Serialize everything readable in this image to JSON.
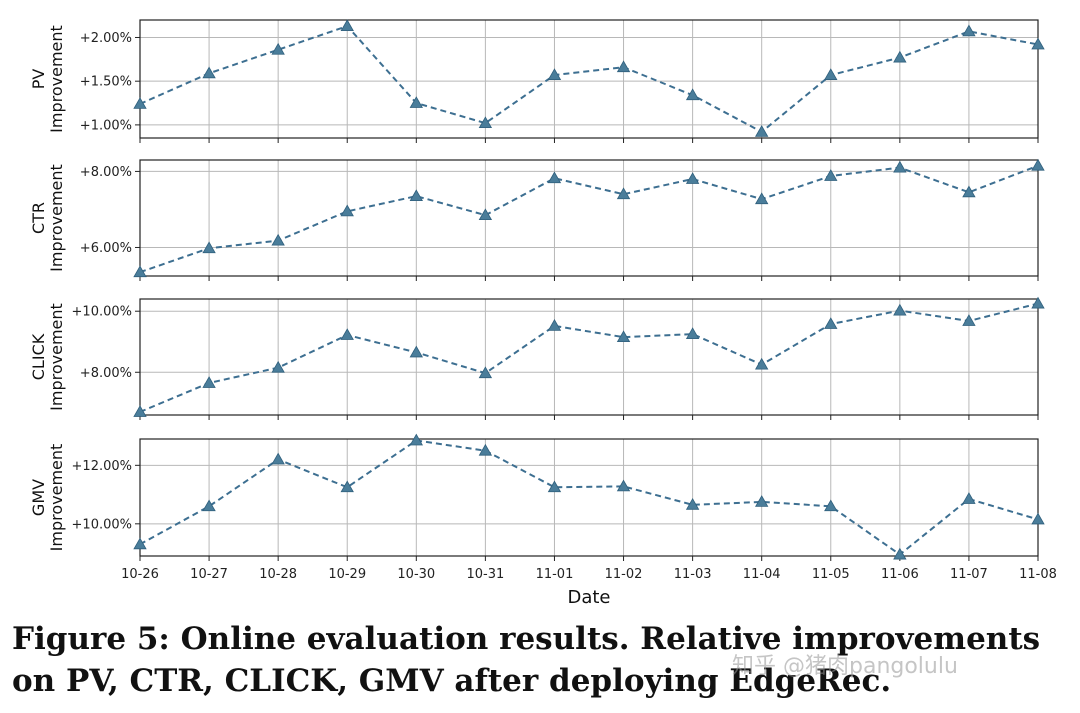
{
  "chart_data": {
    "type": "line",
    "layout": "stacked-subplots",
    "x": [
      "10-26",
      "10-27",
      "10-28",
      "10-29",
      "10-30",
      "10-31",
      "11-01",
      "11-02",
      "11-03",
      "11-04",
      "11-05",
      "11-06",
      "11-07",
      "11-08"
    ],
    "xlabel": "Date",
    "grid": true,
    "marker": "triangle",
    "line_style": "dashed",
    "line_color": "#3d6f91",
    "marker_color": "#4a7d9a",
    "subplots": [
      {
        "ylabel_top": "PV",
        "ylabel_bottom": "Improvement",
        "ylim": [
          0.85,
          2.2
        ],
        "yticks": [
          1.0,
          1.5,
          2.0
        ],
        "ytick_labels": [
          "+1.00%",
          "+1.50%",
          "+2.00%"
        ],
        "values": [
          1.24,
          1.59,
          1.86,
          2.13,
          1.25,
          1.02,
          1.57,
          1.66,
          1.34,
          0.92,
          1.57,
          1.77,
          2.07,
          1.92
        ]
      },
      {
        "ylabel_top": "CTR",
        "ylabel_bottom": "Improvement",
        "ylim": [
          5.25,
          8.3
        ],
        "yticks": [
          6.0,
          8.0
        ],
        "ytick_labels": [
          "+6.00%",
          "+8.00%"
        ],
        "values": [
          5.35,
          5.98,
          6.18,
          6.95,
          7.35,
          6.85,
          7.82,
          7.4,
          7.8,
          7.27,
          7.88,
          8.1,
          7.45,
          8.15
        ]
      },
      {
        "ylabel_top": "CLICK",
        "ylabel_bottom": "Improvement",
        "ylim": [
          6.6,
          10.4
        ],
        "yticks": [
          8.0,
          10.0
        ],
        "ytick_labels": [
          "+8.00%",
          "+10.00%"
        ],
        "values": [
          6.7,
          7.65,
          8.15,
          9.22,
          8.65,
          7.97,
          9.52,
          9.15,
          9.25,
          8.25,
          9.58,
          10.02,
          9.68,
          10.25
        ]
      },
      {
        "ylabel_top": "GMV",
        "ylabel_bottom": "Improvement",
        "ylim": [
          8.9,
          12.9
        ],
        "yticks": [
          10.0,
          12.0
        ],
        "ytick_labels": [
          "+10.00%",
          "+12.00%"
        ],
        "values": [
          9.3,
          10.6,
          12.2,
          11.25,
          12.85,
          12.5,
          11.25,
          11.28,
          10.65,
          10.75,
          10.6,
          8.95,
          10.85,
          10.15
        ]
      }
    ]
  },
  "caption": {
    "line1": "Figure 5: Online evaluation results. Relative improvements",
    "line2": "on PV, CTR, CLICK, GMV after deploying EdgeRec."
  },
  "watermark": "知乎 @猪肉pangolulu"
}
